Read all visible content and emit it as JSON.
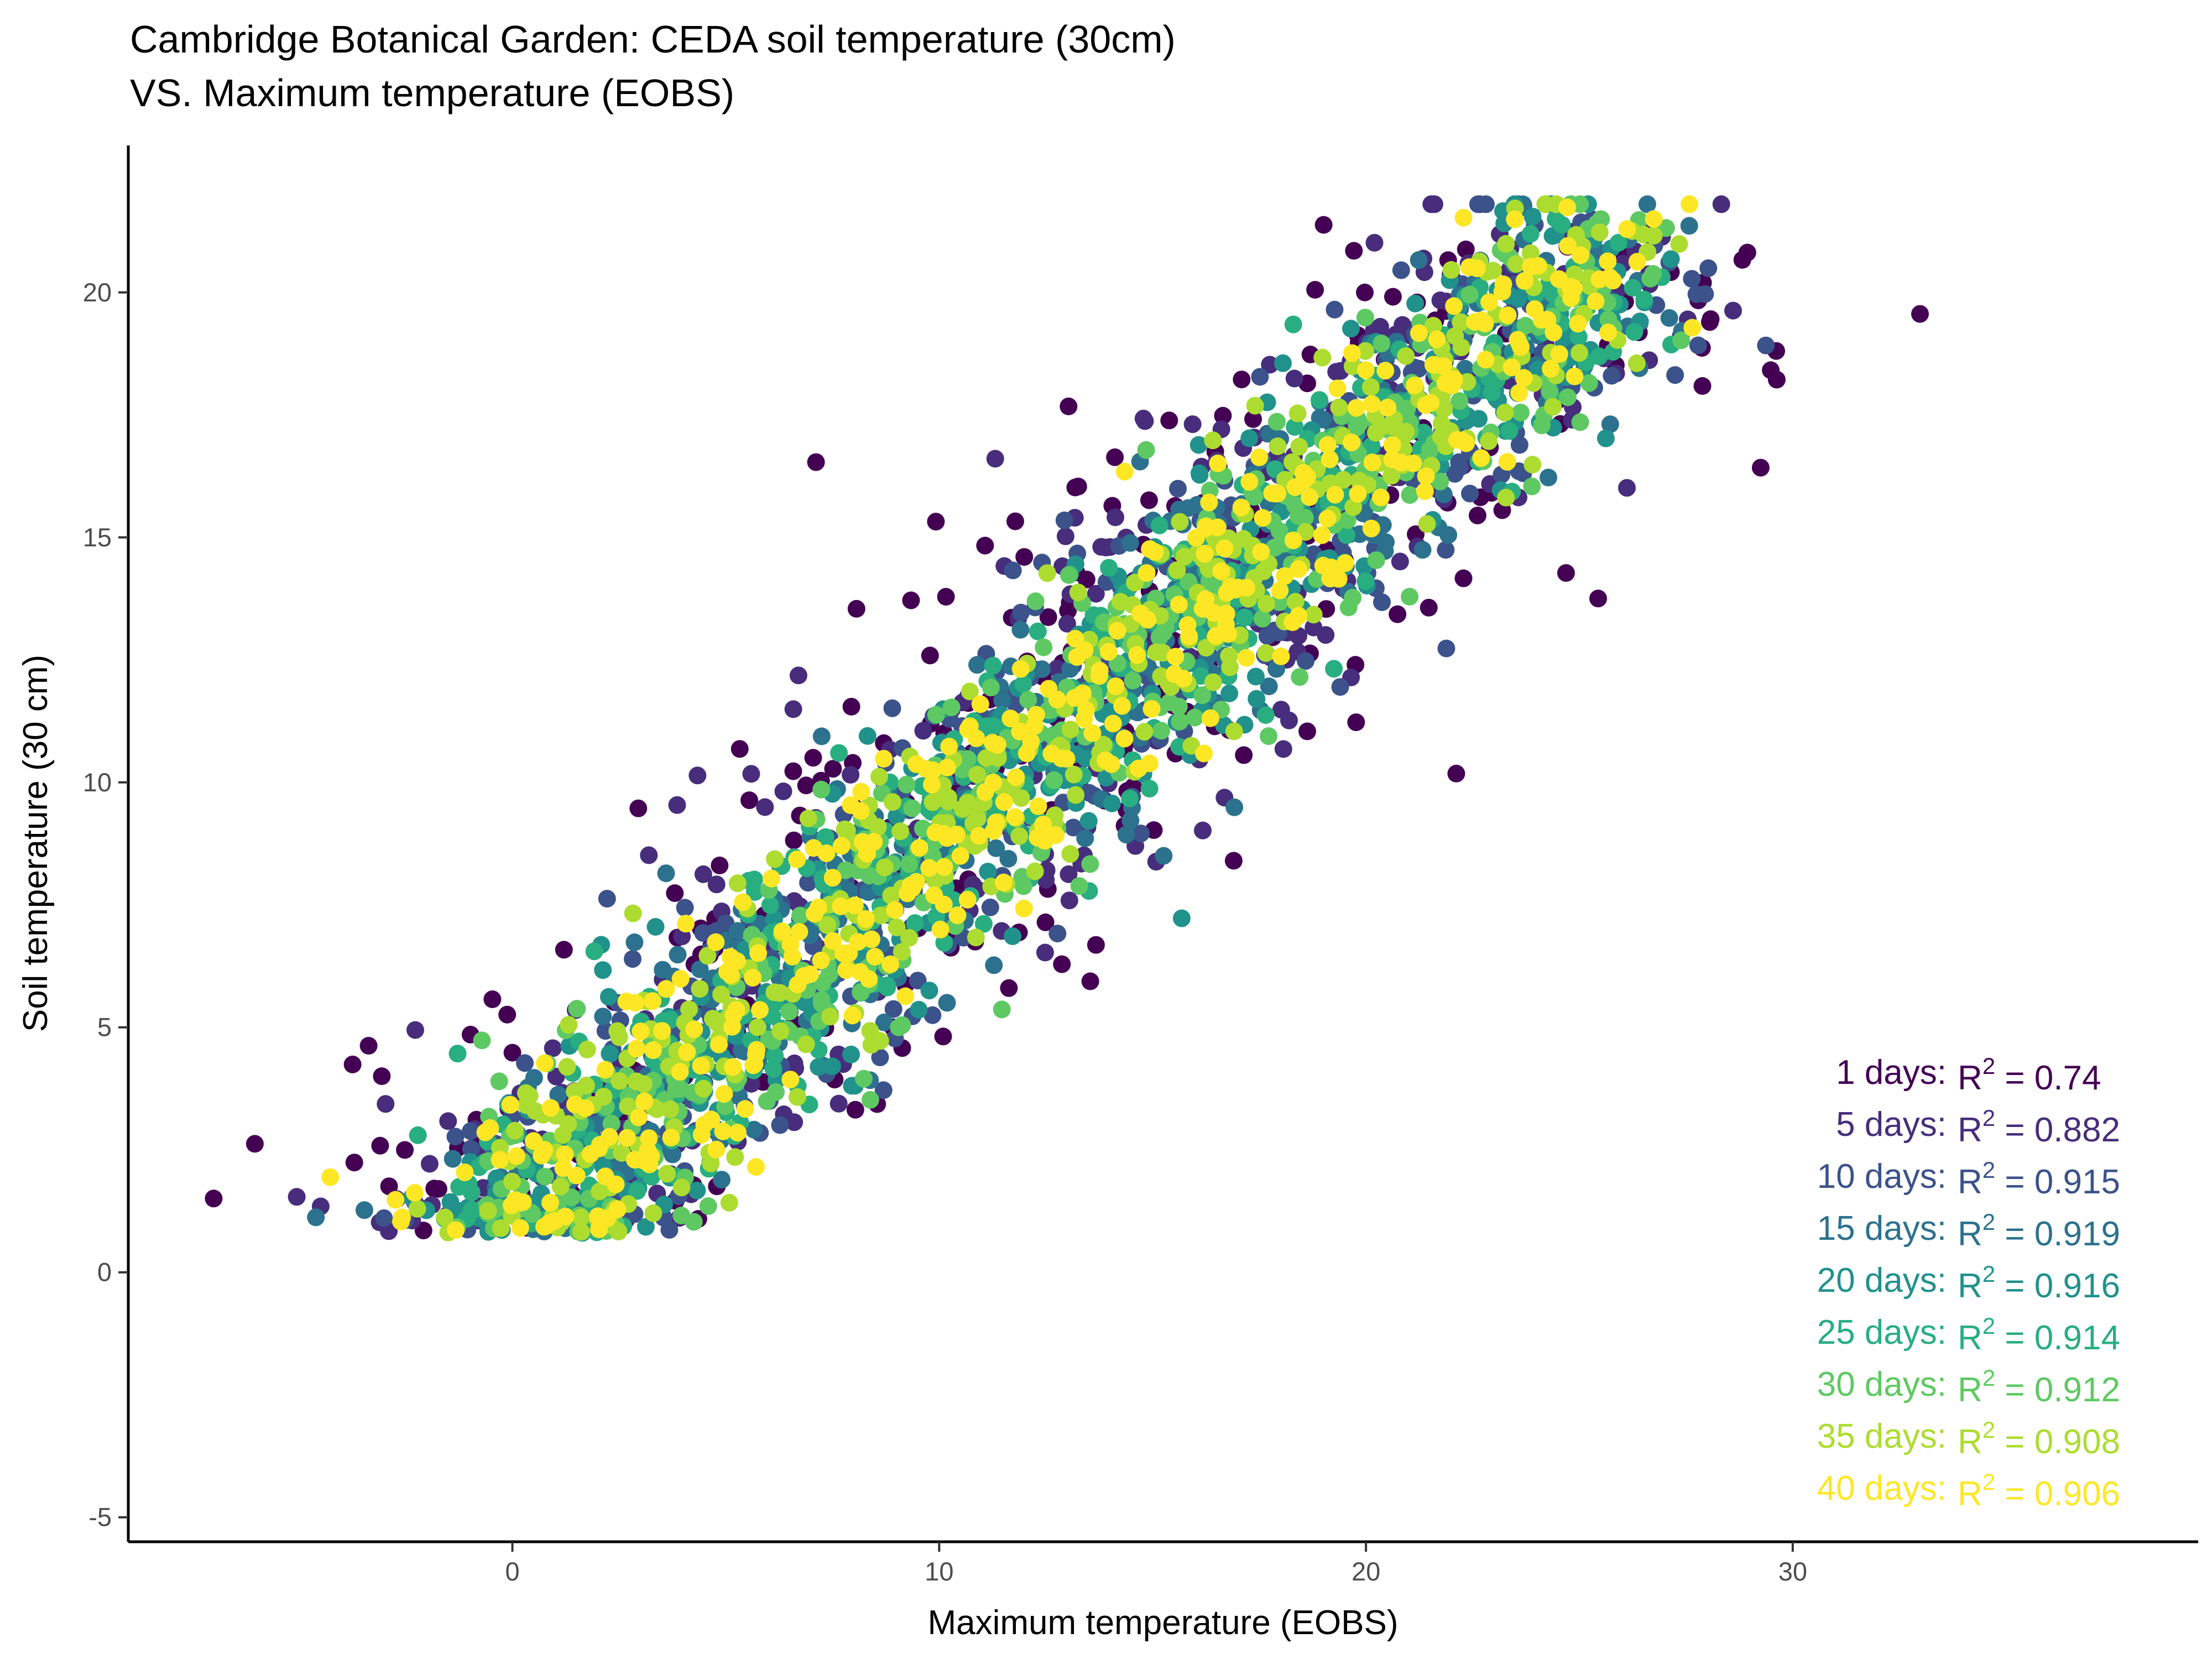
{
  "chart_data": {
    "type": "scatter",
    "title": "Cambridge Botanical Garden: CEDA soil temperature (30cm)",
    "subtitle": "VS. Maximum temperature (EOBS)",
    "xlabel": "Maximum temperature (EOBS)",
    "ylabel": "Soil temperature (30 cm)",
    "xlim": [
      -9,
      39.5
    ],
    "ylim": [
      -5.5,
      23
    ],
    "xticks": [
      0,
      10,
      20,
      30
    ],
    "yticks": [
      -5,
      0,
      5,
      10,
      15,
      20
    ],
    "grid": false,
    "legend": "none",
    "series": [
      {
        "label": "1 days:",
        "r2": "0.74",
        "color": "#440154",
        "spread": 2.2
      },
      {
        "label": "5 days:",
        "r2": "0.882",
        "color": "#472d7b",
        "spread": 1.6
      },
      {
        "label": "10 days:",
        "r2": "0.915",
        "color": "#3b528b",
        "spread": 1.25
      },
      {
        "label": "15 days:",
        "r2": "0.919",
        "color": "#2c728e",
        "spread": 1.05
      },
      {
        "label": "20 days:",
        "r2": "0.916",
        "color": "#21918c",
        "spread": 0.95
      },
      {
        "label": "25 days:",
        "r2": "0.914",
        "color": "#28ae80",
        "spread": 0.9
      },
      {
        "label": "30 days:",
        "r2": "0.912",
        "color": "#5ec962",
        "spread": 0.85
      },
      {
        "label": "35 days:",
        "r2": "0.908",
        "color": "#addc30",
        "spread": 0.82
      },
      {
        "label": "40 days:",
        "r2": "0.906",
        "color": "#fde725",
        "spread": 0.8
      }
    ],
    "annotation_prefix": "R",
    "annotation_superscript": "2",
    "annotation_equals": " = "
  }
}
